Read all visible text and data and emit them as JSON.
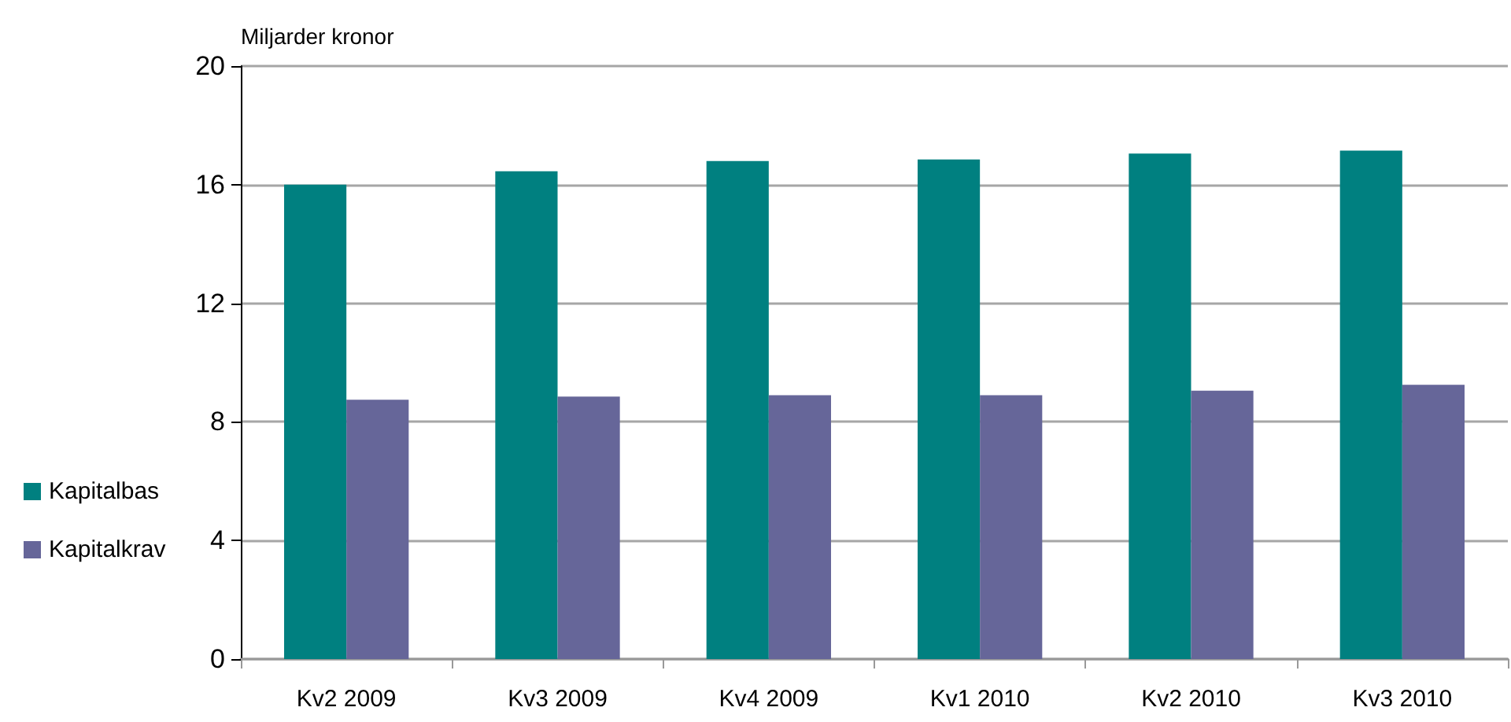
{
  "chart_data": {
    "type": "bar",
    "ylabel": "Miljarder kronor",
    "categories": [
      "Kv2 2009",
      "Kv3 2009",
      "Kv4 2009",
      "Kv1 2010",
      "Kv2 2010",
      "Kv3 2010"
    ],
    "series": [
      {
        "name": "Kapitalbas",
        "color": "#008080",
        "values": [
          16.0,
          16.45,
          16.8,
          16.85,
          17.05,
          17.15
        ]
      },
      {
        "name": "Kapitalkrav",
        "color": "#666699",
        "values": [
          8.75,
          8.85,
          8.9,
          8.9,
          9.05,
          9.25
        ]
      }
    ],
    "ylim": [
      0,
      20
    ],
    "yticks": [
      0,
      4,
      8,
      12,
      16,
      20
    ],
    "grid": "y",
    "legend": "left"
  }
}
